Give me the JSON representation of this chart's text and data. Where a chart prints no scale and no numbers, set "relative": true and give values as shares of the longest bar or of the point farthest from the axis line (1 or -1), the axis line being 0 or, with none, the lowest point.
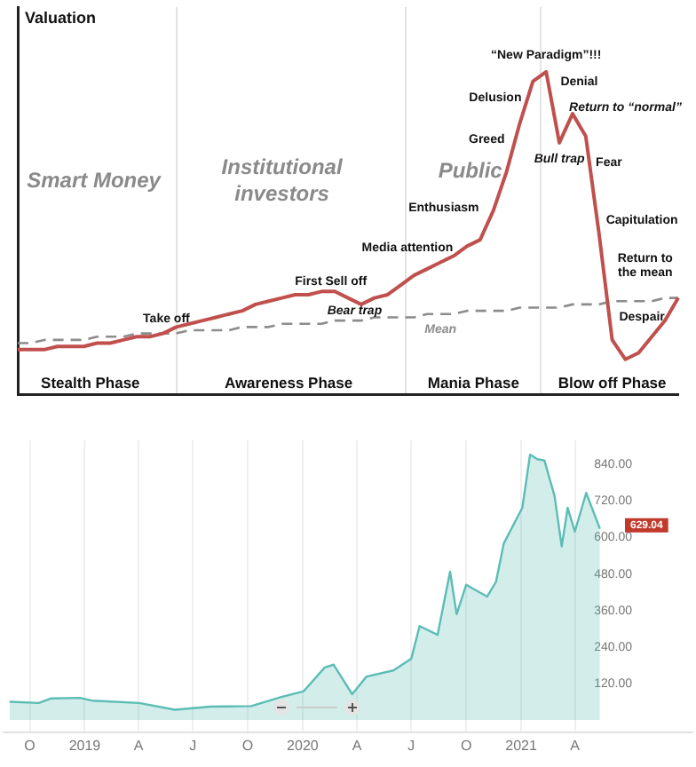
{
  "chart_data": [
    {
      "type": "line",
      "relative": true,
      "ylabel": "Valuation",
      "legend": false,
      "categories": [
        null,
        null,
        null,
        null,
        null,
        null,
        null,
        null,
        null,
        null,
        null,
        null,
        null,
        null,
        null,
        null,
        null,
        null,
        null,
        null,
        null,
        null,
        null,
        null,
        null,
        null,
        null,
        null,
        null,
        null,
        null,
        null,
        null,
        null,
        null,
        null,
        null,
        null,
        null,
        null,
        null,
        null,
        null,
        null,
        null,
        null,
        null,
        null,
        null,
        null,
        null
      ],
      "series": [
        {
          "color": "#c0504d",
          "values": [
            0.14,
            0.14,
            0.14,
            0.15,
            0.15,
            0.15,
            0.16,
            0.16,
            0.17,
            0.18,
            0.18,
            0.19,
            0.21,
            0.22,
            0.23,
            0.24,
            0.25,
            0.26,
            0.28,
            0.29,
            0.3,
            0.31,
            0.31,
            0.32,
            0.32,
            0.3,
            0.28,
            0.3,
            0.31,
            0.34,
            0.37,
            0.39,
            0.41,
            0.43,
            0.46,
            0.48,
            0.57,
            0.69,
            0.84,
            0.97,
            1,
            0.78,
            0.87,
            0.8,
            0.5,
            0.17,
            0.11,
            0.13,
            0.18,
            0.23,
            0.3
          ]
        },
        {
          "name": "Mean",
          "color": "#8c8c8c",
          "line_style": "dashed",
          "values": [
            0.16,
            0.16,
            0.17,
            0.17,
            0.17,
            0.17,
            0.18,
            0.18,
            0.18,
            0.19,
            0.19,
            0.19,
            0.19,
            0.2,
            0.2,
            0.2,
            0.2,
            0.21,
            0.21,
            0.21,
            0.22,
            0.22,
            0.22,
            0.22,
            0.23,
            0.23,
            0.23,
            0.24,
            0.24,
            0.24,
            0.24,
            0.25,
            0.25,
            0.25,
            0.26,
            0.26,
            0.26,
            0.26,
            0.27,
            0.27,
            0.27,
            0.27,
            0.28,
            0.28,
            0.28,
            0.29,
            0.29,
            0.29,
            0.29,
            0.3,
            0.3
          ]
        }
      ],
      "annotations": [
        "Smart Money",
        "Institutional\ninvestors",
        "Public",
        "Stealth Phase",
        "Awareness Phase",
        "Mania Phase",
        "Blow off Phase",
        "Take off",
        "First Sell off",
        "Bear trap",
        "Media attention",
        "Enthusiasm",
        "Greed",
        "Delusion",
        "“New Paradigm”!!!",
        "Denial",
        "Return to “normal”",
        "Bull trap",
        "Fear",
        "Capitulation",
        "Return to\nthe mean",
        "Despair"
      ]
    },
    {
      "type": "area",
      "color": "#5bbdb5",
      "grid": "x",
      "xlim": [
        "2018-08-18",
        "2021-10-15"
      ],
      "ylim": [
        -40,
        920
      ],
      "x": [
        "2018-08-28",
        "2018-10-16",
        "2018-11-05",
        "2018-12-24",
        "2019-01-13",
        "2019-04-02",
        "2019-06-01",
        "2019-07-30",
        "2019-10-07",
        "2019-11-25",
        "2020-01-03",
        "2020-02-07",
        "2020-02-22",
        "2020-03-24",
        "2020-04-17",
        "2020-06-01",
        "2020-07-01",
        "2020-07-15",
        "2020-08-14",
        "2020-09-04",
        "2020-09-15",
        "2020-10-01",
        "2020-11-05",
        "2020-11-20",
        "2020-12-03",
        "2021-01-03",
        "2021-01-16",
        "2021-01-28",
        "2021-02-09",
        "2021-02-26",
        "2021-03-10",
        "2021-03-20",
        "2021-04-01",
        "2021-04-20",
        "2021-05-13"
      ],
      "values": [
        60,
        56,
        71,
        73,
        64,
        56,
        34,
        44,
        46,
        75,
        95,
        173,
        182,
        85,
        143,
        163,
        202,
        309,
        280,
        488,
        348,
        445,
        406,
        455,
        581,
        698,
        873,
        858,
        854,
        737,
        571,
        698,
        620,
        747,
        629.04
      ],
      "xticks": [
        {
          "value": "2018-10-01",
          "label": "O"
        },
        {
          "value": "2019-01-01",
          "label": "2019"
        },
        {
          "value": "2019-04-01",
          "label": "A"
        },
        {
          "value": "2019-07-01",
          "label": "J"
        },
        {
          "value": "2019-10-01",
          "label": "O"
        },
        {
          "value": "2020-01-01",
          "label": "2020"
        },
        {
          "value": "2020-04-01",
          "label": "A"
        },
        {
          "value": "2020-07-01",
          "label": "J"
        },
        {
          "value": "2020-10-01",
          "label": "O"
        },
        {
          "value": "2021-01-01",
          "label": "2021"
        },
        {
          "value": "2021-04-01",
          "label": "A"
        }
      ],
      "yticks": [
        {
          "value": 120,
          "label": "120.00"
        },
        {
          "value": 240,
          "label": "240.00"
        },
        {
          "value": 360,
          "label": "360.00"
        },
        {
          "value": 480,
          "label": "480.00"
        },
        {
          "value": 600,
          "label": "600.00"
        },
        {
          "value": 720,
          "label": "720.00"
        },
        {
          "value": 840,
          "label": "840.00"
        }
      ],
      "annotations": [
        {
          "text": "629.04",
          "x": "2021-05-13",
          "y": 629.04
        }
      ]
    }
  ]
}
